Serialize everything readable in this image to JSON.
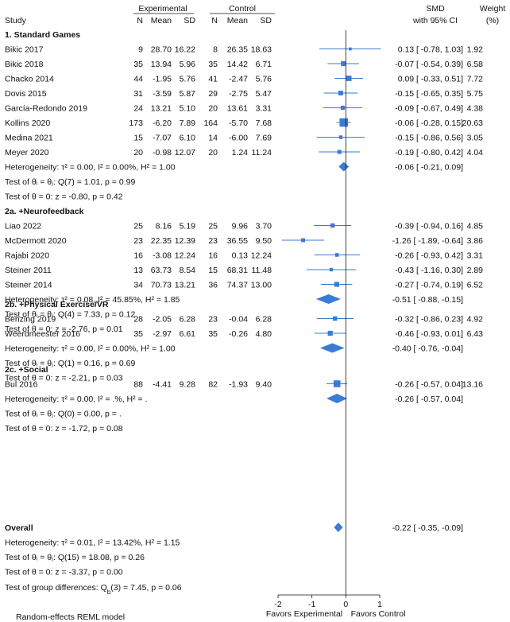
{
  "headers": {
    "group_experimental": "Experimental",
    "group_control": "Control",
    "study": "Study",
    "n_e": "N",
    "mean_e": "Mean",
    "sd_e": "SD",
    "n_c": "N",
    "mean_c": "Mean",
    "sd_c": "SD",
    "smd": "SMD",
    "ci": "with 95% CI",
    "weight": "Weight",
    "weight_unit": "(%)"
  },
  "chart_data": {
    "type": "forest",
    "xlim": [
      -2,
      1
    ],
    "xticks": [
      "-2",
      "-1",
      "0",
      "1"
    ],
    "favors_left": "Favors Experimental",
    "favors_right": "Favors Control",
    "footer_note": "Random-effects REML model",
    "groups": [
      {
        "title": "1. Standard Games",
        "studies": [
          {
            "name": "Bikic 2017",
            "ne": "9",
            "me": "28.70",
            "sde": "16.22",
            "nc": "8",
            "mc": "26.35",
            "sdc": "18.63",
            "smd": 0.13,
            "lo": -0.78,
            "hi": 1.03,
            "ci": "0.13 [ -0.78,  1.03]",
            "weight": "1.92",
            "w": 1.92
          },
          {
            "name": "Bikic 2018",
            "ne": "35",
            "me": "13.94",
            "sde": "5.96",
            "nc": "35",
            "mc": "14.42",
            "sdc": "6.71",
            "smd": -0.07,
            "lo": -0.54,
            "hi": 0.39,
            "ci": "-0.07 [ -0.54,  0.39]",
            "weight": "6.58",
            "w": 6.58
          },
          {
            "name": "Chacko 2014",
            "ne": "44",
            "me": "-1.95",
            "sde": "5.76",
            "nc": "41",
            "mc": "-2.47",
            "sdc": "5.76",
            "smd": 0.09,
            "lo": -0.33,
            "hi": 0.51,
            "ci": "0.09 [ -0.33,  0.51]",
            "weight": "7.72",
            "w": 7.72
          },
          {
            "name": "Dovis 2015",
            "ne": "31",
            "me": "-3.59",
            "sde": "5.87",
            "nc": "29",
            "mc": "-2.75",
            "sdc": "5.47",
            "smd": -0.15,
            "lo": -0.65,
            "hi": 0.35,
            "ci": "-0.15 [ -0.65,  0.35]",
            "weight": "5.75",
            "w": 5.75
          },
          {
            "name": "García-Redondo 2019",
            "ne": "24",
            "me": "13.21",
            "sde": "5.10",
            "nc": "20",
            "mc": "13.61",
            "sdc": "3.31",
            "smd": -0.09,
            "lo": -0.67,
            "hi": 0.49,
            "ci": "-0.09 [ -0.67,  0.49]",
            "weight": "4.38",
            "w": 4.38
          },
          {
            "name": "Kollins 2020",
            "ne": "173",
            "me": "-6.20",
            "sde": "7.89",
            "nc": "164",
            "mc": "-5.70",
            "sdc": "7.68",
            "smd": -0.06,
            "lo": -0.28,
            "hi": 0.15,
            "ci": "-0.06 [ -0.28,  0.15]",
            "weight": "20.63",
            "w": 20.63
          },
          {
            "name": "Medina 2021",
            "ne": "15",
            "me": "-7.07",
            "sde": "6.10",
            "nc": "14",
            "mc": "-6.00",
            "sdc": "7.69",
            "smd": -0.15,
            "lo": -0.86,
            "hi": 0.56,
            "ci": "-0.15 [ -0.86,  0.56]",
            "weight": "3.05",
            "w": 3.05
          },
          {
            "name": "Meyer 2020",
            "ne": "20",
            "me": "-0.98",
            "sde": "12.07",
            "nc": "20",
            "mc": "1.24",
            "sdc": "11.24",
            "smd": -0.19,
            "lo": -0.8,
            "hi": 0.42,
            "ci": "-0.19 [ -0.80,  0.42]",
            "weight": "4.04",
            "w": 4.04
          }
        ],
        "summary": {
          "smd": -0.06,
          "lo": -0.21,
          "hi": 0.09,
          "ci": "-0.06 [ -0.21,  0.09]"
        },
        "stats": [
          "Heterogeneity: τ² = 0.00, I² = 0.00%, H² = 1.00",
          "Test of θᵢ = θⱼ: Q(7) = 1.01, p = 0.99",
          "Test of θ = 0: z = -0.80, p = 0.42"
        ]
      },
      {
        "title": "2a. +Neurofeedback",
        "studies": [
          {
            "name": "Liao 2022",
            "ne": "25",
            "me": "8.16",
            "sde": "5.19",
            "nc": "25",
            "mc": "9.96",
            "sdc": "3.70",
            "smd": -0.39,
            "lo": -0.94,
            "hi": 0.16,
            "ci": "-0.39 [ -0.94,  0.16]",
            "weight": "4.85",
            "w": 4.85
          },
          {
            "name": "McDermott 2020",
            "ne": "23",
            "me": "22.35",
            "sde": "12.39",
            "nc": "23",
            "mc": "36.55",
            "sdc": "9.50",
            "smd": -1.26,
            "lo": -1.89,
            "hi": -0.64,
            "ci": "-1.26 [ -1.89, -0.64]",
            "weight": "3.86",
            "w": 3.86
          },
          {
            "name": "Rajabi 2020",
            "ne": "16",
            "me": "-3.08",
            "sde": "12.24",
            "nc": "16",
            "mc": "0.13",
            "sdc": "12.24",
            "smd": -0.26,
            "lo": -0.93,
            "hi": 0.42,
            "ci": "-0.26 [ -0.93,  0.42]",
            "weight": "3.31",
            "w": 3.31
          },
          {
            "name": "Steiner 2011",
            "ne": "13",
            "me": "63.73",
            "sde": "8.54",
            "nc": "15",
            "mc": "68.31",
            "sdc": "11.48",
            "smd": -0.43,
            "lo": -1.16,
            "hi": 0.3,
            "ci": "-0.43 [ -1.16,  0.30]",
            "weight": "2.89",
            "w": 2.89
          },
          {
            "name": "Steiner 2014",
            "ne": "34",
            "me": "70.73",
            "sde": "13.21",
            "nc": "36",
            "mc": "74.37",
            "sdc": "13.00",
            "smd": -0.27,
            "lo": -0.74,
            "hi": 0.19,
            "ci": "-0.27 [ -0.74,  0.19]",
            "weight": "6.52",
            "w": 6.52
          }
        ],
        "summary": {
          "smd": -0.51,
          "lo": -0.88,
          "hi": -0.15,
          "ci": "-0.51 [ -0.88, -0.15]"
        },
        "stats": [
          "Heterogeneity: τ² = 0.08, I² = 45.85%, H² = 1.85",
          "Test of θᵢ = θⱼ: Q(4) = 7.33, p = 0.12",
          "Test of θ = 0: z = -2.76, p = 0.01"
        ]
      },
      {
        "title": "2b. +Physical Exercise/VR",
        "studies": [
          {
            "name": "Benzing 2019",
            "ne": "28",
            "me": "-2.05",
            "sde": "6.28",
            "nc": "23",
            "mc": "-0.04",
            "sdc": "6.28",
            "smd": -0.32,
            "lo": -0.86,
            "hi": 0.23,
            "ci": "-0.32 [ -0.86,  0.23]",
            "weight": "4.92",
            "w": 4.92
          },
          {
            "name": "Weerdmeester 2016",
            "ne": "35",
            "me": "-2.97",
            "sde": "6.61",
            "nc": "35",
            "mc": "-0.26",
            "sdc": "4.80",
            "smd": -0.46,
            "lo": -0.93,
            "hi": 0.01,
            "ci": "-0.46 [ -0.93,  0.01]",
            "weight": "6.43",
            "w": 6.43
          }
        ],
        "summary": {
          "smd": -0.4,
          "lo": -0.76,
          "hi": -0.04,
          "ci": "-0.40 [ -0.76, -0.04]"
        },
        "stats": [
          "Heterogeneity: τ² = 0.00, I² = 0.00%, H² = 1.00",
          "Test of θᵢ = θⱼ: Q(1) = 0.16, p = 0.69",
          "Test of θ = 0: z = -2.21, p = 0.03"
        ]
      },
      {
        "title": "2c. +Social",
        "studies": [
          {
            "name": "Bul 2016",
            "ne": "88",
            "me": "-4.41",
            "sde": "9.28",
            "nc": "82",
            "mc": "-1.93",
            "sdc": "9.40",
            "smd": -0.26,
            "lo": -0.57,
            "hi": 0.04,
            "ci": "-0.26 [ -0.57,  0.04]",
            "weight": "13.16",
            "w": 13.16
          }
        ],
        "summary": {
          "smd": -0.26,
          "lo": -0.57,
          "hi": 0.04,
          "ci": "-0.26 [ -0.57,  0.04]"
        },
        "stats": [
          "Heterogeneity: τ² = 0.00, I² = .%, H² = .",
          "Test of θᵢ = θⱼ: Q(0) = 0.00, p = .",
          "Test of θ = 0: z = -1.72, p = 0.08"
        ]
      }
    ],
    "overall": {
      "title": "Overall",
      "smd": -0.22,
      "lo": -0.35,
      "hi": -0.09,
      "ci": "-0.22 [ -0.35, -0.09]",
      "stats": [
        "Heterogeneity: τ² = 0.01, I² = 13.42%, H² = 1.15",
        "Test of θᵢ = θⱼ: Q(15) = 18.08, p = 0.26",
        "Test of θ = 0: z = -3.37, p = 0.00"
      ],
      "group_test": "Test of group differences: Q_b(3) = 7.45, p = 0.06"
    },
    "colors": {
      "marker": "#3a7bd5",
      "line": "#111111"
    }
  }
}
